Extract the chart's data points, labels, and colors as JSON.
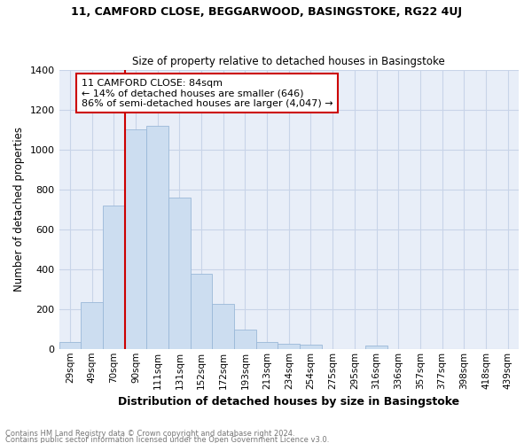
{
  "title1": "11, CAMFORD CLOSE, BEGGARWOOD, BASINGSTOKE, RG22 4UJ",
  "title2": "Size of property relative to detached houses in Basingstoke",
  "xlabel": "Distribution of detached houses by size in Basingstoke",
  "ylabel": "Number of detached properties",
  "footnote1": "Contains HM Land Registry data © Crown copyright and database right 2024.",
  "footnote2": "Contains public sector information licensed under the Open Government Licence v3.0.",
  "categories": [
    "29sqm",
    "49sqm",
    "70sqm",
    "90sqm",
    "111sqm",
    "131sqm",
    "152sqm",
    "172sqm",
    "193sqm",
    "213sqm",
    "234sqm",
    "254sqm",
    "275sqm",
    "295sqm",
    "316sqm",
    "336sqm",
    "357sqm",
    "377sqm",
    "398sqm",
    "418sqm",
    "439sqm"
  ],
  "values": [
    35,
    235,
    720,
    1100,
    1120,
    760,
    375,
    225,
    95,
    35,
    25,
    20,
    0,
    0,
    15,
    0,
    0,
    0,
    0,
    0,
    0
  ],
  "bar_color": "#ccddf0",
  "bar_edge_color": "#9ab8d8",
  "vline_color": "#cc0000",
  "vline_pos": 2.5,
  "annotation_text": "11 CAMFORD CLOSE: 84sqm\n← 14% of detached houses are smaller (646)\n86% of semi-detached houses are larger (4,047) →",
  "annotation_box_color": "#ffffff",
  "annotation_box_edge": "#cc0000",
  "ylim": [
    0,
    1400
  ],
  "yticks": [
    0,
    200,
    400,
    600,
    800,
    1000,
    1200,
    1400
  ],
  "grid_color": "#c8d4e8",
  "bg_color": "#e8eef8",
  "title1_fontsize": 9,
  "title2_fontsize": 8.5
}
